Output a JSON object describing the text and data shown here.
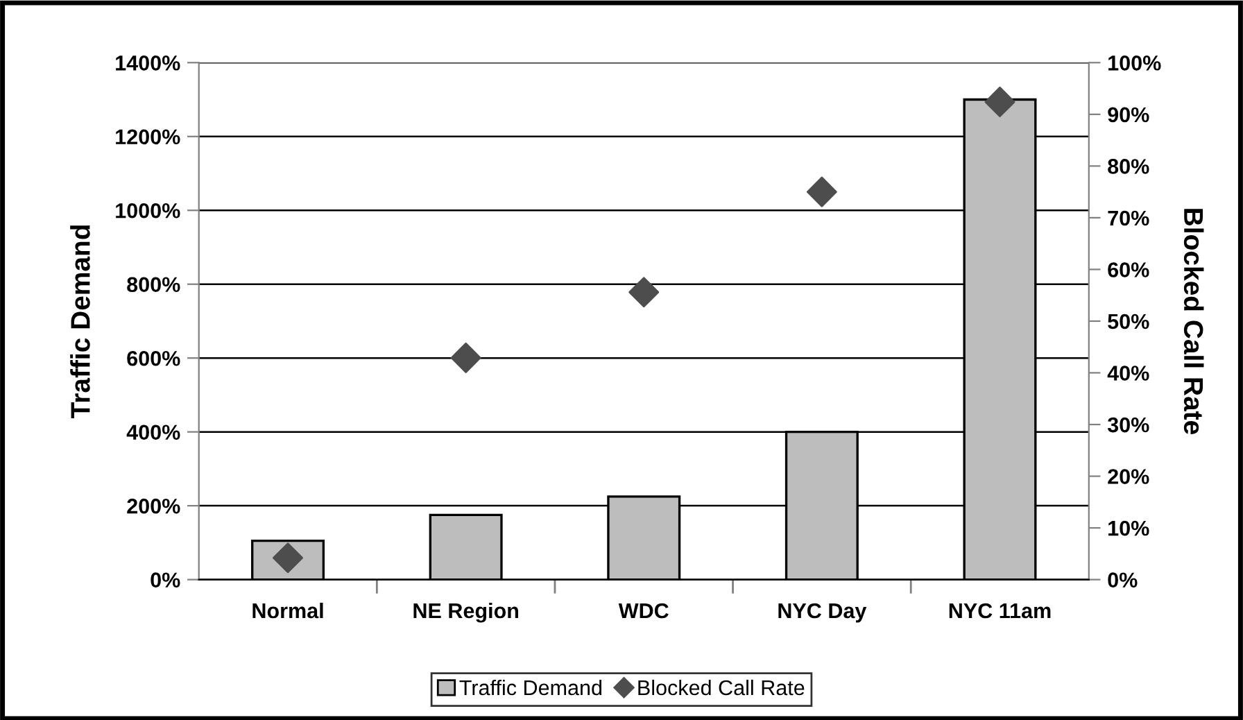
{
  "chart_data": {
    "type": "bar",
    "categories": [
      "Normal",
      "NE Region",
      "WDC",
      "NYC Day",
      "NYC 11am"
    ],
    "series": [
      {
        "name": "Traffic Demand",
        "color": "#bdbdbd",
        "values": [
          105,
          175,
          225,
          400,
          1300
        ]
      },
      {
        "name": "Blocked Call Rate",
        "type": "scatter",
        "axis": "y2",
        "color": "#4d4d4d",
        "marker": "diamond",
        "values": [
          4.2,
          42.9,
          55.6,
          75,
          92.4
        ]
      }
    ],
    "ylabel": "Traffic Demand",
    "y2label": "Blocked Call Rate",
    "ylim": [
      0,
      1400
    ],
    "yticks": [
      {
        "value": 0,
        "label": "0%"
      },
      {
        "value": 200,
        "label": "200%"
      },
      {
        "value": 400,
        "label": "400%"
      },
      {
        "value": 600,
        "label": "600%"
      },
      {
        "value": 800,
        "label": "800%"
      },
      {
        "value": 1000,
        "label": "1000%"
      },
      {
        "value": 1200,
        "label": "1200%"
      },
      {
        "value": 1400,
        "label": "1400%"
      }
    ],
    "y2lim": [
      0,
      100
    ],
    "y2ticks": [
      {
        "value": 0,
        "label": "0%"
      },
      {
        "value": 10,
        "label": "10%"
      },
      {
        "value": 20,
        "label": "20%"
      },
      {
        "value": 30,
        "label": "30%"
      },
      {
        "value": 40,
        "label": "40%"
      },
      {
        "value": 50,
        "label": "50%"
      },
      {
        "value": 60,
        "label": "60%"
      },
      {
        "value": 70,
        "label": "70%"
      },
      {
        "value": 80,
        "label": "80%"
      },
      {
        "value": 90,
        "label": "90%"
      },
      {
        "value": 100,
        "label": "100%"
      }
    ],
    "grid": "y",
    "legend": "bottom"
  }
}
